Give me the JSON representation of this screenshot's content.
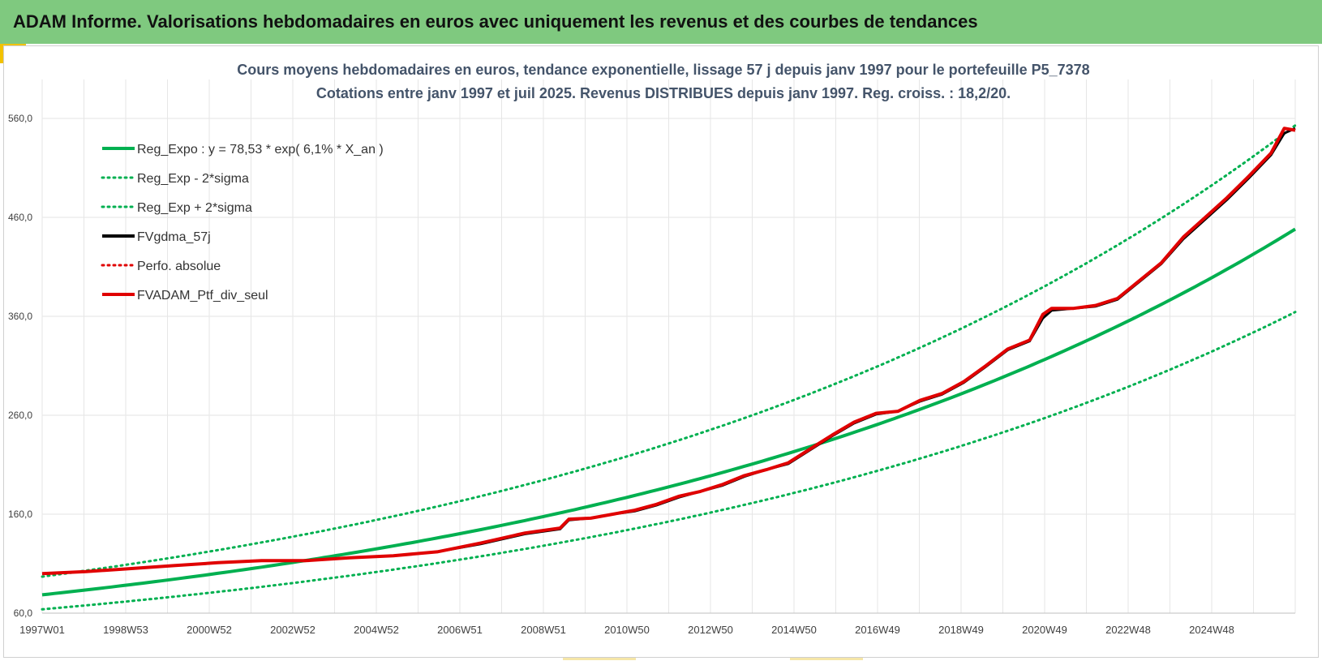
{
  "banner": {
    "title": "ADAM Informe. Valorisations hebdomadaires en euros avec uniquement les revenus et des courbes de tendances"
  },
  "colors": {
    "banner_bg": "#7fc97f",
    "accent": "#f2c200",
    "regression": "#00b050",
    "smoothed": "#000000",
    "performance": "#e00000"
  },
  "chart_data": {
    "type": "line",
    "title_line1": "Cours moyens hebdomadaires  en euros, tendance exponentielle, lissage 57 j depuis janv 1997 pour le portefeuille P5_7378",
    "title_line2": "Cotations entre janv 1997 et juil 2025. Revenus DISTRIBUES depuis janv 1997. Reg. croiss. : 18,2/20.",
    "ylim": [
      60,
      560
    ],
    "yticks": [
      "60,0",
      "160,0",
      "260,0",
      "360,0",
      "460,0",
      "560,0"
    ],
    "xlim": [
      1997.0,
      2025.55
    ],
    "xtick_labels": [
      "1997W01",
      "1998W53",
      "2000W52",
      "2002W52",
      "2004W52",
      "2006W51",
      "2008W51",
      "2010W50",
      "2012W50",
      "2014W50",
      "2016W49",
      "2018W49",
      "2020W49",
      "2022W48",
      "2024W48"
    ],
    "grid": true,
    "legend_position": "top-left",
    "legend": [
      {
        "label": "Reg_Expo : y = 78,53 * exp( 6,1% *  X_an )",
        "style": "solid",
        "color": "#00b050"
      },
      {
        "label": "Reg_Exp - 2*sigma",
        "style": "dotted",
        "color": "#00b050"
      },
      {
        "label": "Reg_Exp + 2*sigma",
        "style": "dotted",
        "color": "#00b050"
      },
      {
        "label": "FVgdma_57j",
        "style": "solid",
        "color": "#000000"
      },
      {
        "label": "Perfo. absolue",
        "style": "dotted",
        "color": "#e00000"
      },
      {
        "label": "FVADAM_Ptf_div_seul",
        "style": "solid",
        "color": "#e00000"
      }
    ],
    "regression": {
      "a": 78.53,
      "rate": 0.061,
      "lower_factor": 0.813,
      "upper_factor": 1.234
    },
    "series": [
      {
        "name": "FVADAM_Ptf_div_seul",
        "x": [
          1997.0,
          1998.0,
          1999.0,
          2000.0,
          2001.0,
          2002.0,
          2003.0,
          2004.0,
          2005.0,
          2006.0,
          2007.0,
          2008.0,
          2008.8,
          2009.0,
          2009.5,
          2010.0,
          2010.5,
          2011.0,
          2011.5,
          2012.0,
          2012.5,
          2013.0,
          2013.5,
          2014.0,
          2014.5,
          2015.0,
          2015.5,
          2016.0,
          2016.5,
          2017.0,
          2017.5,
          2018.0,
          2018.5,
          2019.0,
          2019.5,
          2019.8,
          2020.0,
          2020.5,
          2021.0,
          2021.5,
          2022.0,
          2022.5,
          2023.0,
          2023.5,
          2024.0,
          2024.5,
          2025.0,
          2025.3,
          2025.55
        ],
        "values": [
          100,
          102,
          105,
          108,
          111,
          113,
          113,
          116,
          118,
          122,
          131,
          141,
          146,
          155,
          156,
          160,
          164,
          170,
          178,
          183,
          190,
          199,
          205,
          212,
          226,
          240,
          253,
          262,
          264,
          275,
          282,
          294,
          310,
          327,
          336,
          362,
          368,
          368,
          371,
          378,
          396,
          414,
          440,
          460,
          480,
          502,
          525,
          550,
          548
        ]
      },
      {
        "name": "FVgdma_57j",
        "x": [
          1997.0,
          1998.0,
          1999.0,
          2000.0,
          2001.0,
          2002.0,
          2003.0,
          2004.0,
          2005.0,
          2006.0,
          2007.0,
          2008.0,
          2008.8,
          2009.0,
          2009.5,
          2010.0,
          2010.5,
          2011.0,
          2011.5,
          2012.0,
          2012.5,
          2013.0,
          2013.5,
          2014.0,
          2014.5,
          2015.0,
          2015.5,
          2016.0,
          2016.5,
          2017.0,
          2017.5,
          2018.0,
          2018.5,
          2019.0,
          2019.5,
          2019.8,
          2020.0,
          2020.5,
          2021.0,
          2021.5,
          2022.0,
          2022.5,
          2023.0,
          2023.5,
          2024.0,
          2024.5,
          2025.0,
          2025.3,
          2025.55
        ],
        "values": [
          100,
          102,
          105,
          108,
          111,
          113,
          113,
          116,
          118,
          122,
          130,
          140,
          145,
          154,
          156,
          160,
          163,
          169,
          177,
          183,
          189,
          198,
          205,
          211,
          225,
          239,
          252,
          261,
          264,
          274,
          281,
          293,
          309,
          326,
          335,
          358,
          366,
          368,
          370,
          377,
          395,
          413,
          438,
          458,
          478,
          500,
          523,
          545,
          550
        ]
      }
    ]
  }
}
